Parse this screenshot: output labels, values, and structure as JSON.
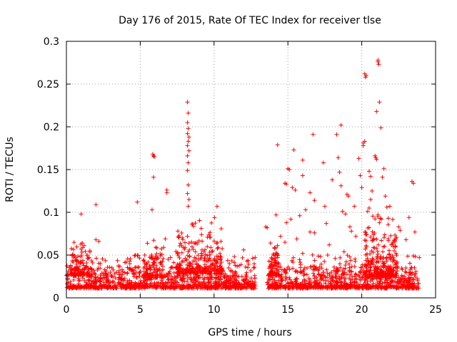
{
  "chart_data": {
    "type": "scatter",
    "title": "Day 176 of 2015, Rate Of TEC Index for receiver tlse",
    "xlabel": "GPS time / hours",
    "ylabel": "ROTI / TECUs",
    "xlim": [
      0,
      25
    ],
    "ylim": [
      0,
      0.3
    ],
    "xticks": [
      0,
      5,
      10,
      15,
      20,
      25
    ],
    "yticks": [
      0,
      0.05,
      0.1,
      0.15,
      0.2,
      0.25,
      0.3
    ],
    "xtick_labels": [
      "0",
      "5",
      "10",
      "15",
      "20",
      "25"
    ],
    "ytick_labels": [
      "0",
      "0.05",
      "0.1",
      "0.15",
      "0.2",
      "0.25",
      "0.3"
    ],
    "grid": true,
    "marker": "+",
    "color": "#ff0000",
    "series": [
      {
        "name": "ROTI",
        "points": [
          [
            1.0,
            0.098
          ],
          [
            2.0,
            0.109
          ],
          [
            4.8,
            0.112
          ],
          [
            5.8,
            0.103
          ],
          [
            5.9,
            0.141
          ],
          [
            5.9,
            0.166
          ],
          [
            5.85,
            0.168
          ],
          [
            5.95,
            0.165
          ],
          [
            6.8,
            0.126
          ],
          [
            6.8,
            0.123
          ],
          [
            8.2,
            0.229
          ],
          [
            8.25,
            0.216
          ],
          [
            8.2,
            0.205
          ],
          [
            8.25,
            0.198
          ],
          [
            8.2,
            0.192
          ],
          [
            8.3,
            0.188
          ],
          [
            8.25,
            0.183
          ],
          [
            8.2,
            0.178
          ],
          [
            8.3,
            0.172
          ],
          [
            8.2,
            0.166
          ],
          [
            8.25,
            0.158
          ],
          [
            8.2,
            0.149
          ],
          [
            8.25,
            0.132
          ],
          [
            8.2,
            0.122
          ],
          [
            8.3,
            0.115
          ],
          [
            8.25,
            0.107
          ],
          [
            8.2,
            0.072
          ],
          [
            8.3,
            0.064
          ],
          [
            10.2,
            0.107
          ],
          [
            6.7,
            0.069
          ],
          [
            2.0,
            0.068
          ],
          [
            2.2,
            0.066
          ],
          [
            1.2,
            0.061
          ],
          [
            12.0,
            0.056
          ],
          [
            13.5,
            0.083
          ],
          [
            13.6,
            0.082
          ],
          [
            14.3,
            0.179
          ],
          [
            14.2,
            0.097
          ],
          [
            14.5,
            0.072
          ],
          [
            15.0,
            0.151
          ],
          [
            15.1,
            0.15
          ],
          [
            15.4,
            0.173
          ],
          [
            14.8,
            0.134
          ],
          [
            14.9,
            0.133
          ],
          [
            15.3,
            0.129
          ],
          [
            15.5,
            0.126
          ],
          [
            16.0,
            0.161
          ],
          [
            16.0,
            0.143
          ],
          [
            16.5,
            0.123
          ],
          [
            16.7,
            0.191
          ],
          [
            16.8,
            0.114
          ],
          [
            16.2,
            0.103
          ],
          [
            15.8,
            0.096
          ],
          [
            15.2,
            0.092
          ],
          [
            14.9,
            0.088
          ],
          [
            14.8,
            0.065
          ],
          [
            17.4,
            0.158
          ],
          [
            17.5,
            0.107
          ],
          [
            17.6,
            0.087
          ],
          [
            18.0,
            0.138
          ],
          [
            18.3,
            0.191
          ],
          [
            18.4,
            0.164
          ],
          [
            18.5,
            0.147
          ],
          [
            18.6,
            0.131
          ],
          [
            18.6,
            0.202
          ],
          [
            18.7,
            0.101
          ],
          [
            19.0,
            0.121
          ],
          [
            19.1,
            0.119
          ],
          [
            19.2,
            0.083
          ],
          [
            19.3,
            0.078
          ],
          [
            18.8,
            0.054
          ],
          [
            19.8,
            0.163
          ],
          [
            19.9,
            0.143
          ],
          [
            20.0,
            0.129
          ],
          [
            20.1,
            0.181
          ],
          [
            20.2,
            0.183
          ],
          [
            20.1,
            0.178
          ],
          [
            20.5,
            0.148
          ],
          [
            20.6,
            0.142
          ],
          [
            20.7,
            0.125
          ],
          [
            20.6,
            0.115
          ],
          [
            20.5,
            0.105
          ],
          [
            20.9,
            0.166
          ],
          [
            21.0,
            0.162
          ],
          [
            20.95,
            0.164
          ],
          [
            21.1,
            0.276
          ],
          [
            21.15,
            0.273
          ],
          [
            21.1,
            0.278
          ],
          [
            21.2,
            0.229
          ],
          [
            21.3,
            0.199
          ],
          [
            21.0,
            0.218
          ],
          [
            20.2,
            0.262
          ],
          [
            20.25,
            0.258
          ],
          [
            20.3,
            0.26
          ],
          [
            21.5,
            0.151
          ],
          [
            21.4,
            0.141
          ],
          [
            21.6,
            0.119
          ],
          [
            21.7,
            0.106
          ],
          [
            21.8,
            0.093
          ],
          [
            21.1,
            0.097
          ],
          [
            21.2,
            0.088
          ],
          [
            22.5,
            0.083
          ],
          [
            22.6,
            0.079
          ],
          [
            23.0,
            0.068
          ],
          [
            23.2,
            0.094
          ],
          [
            23.4,
            0.136
          ],
          [
            23.5,
            0.134
          ],
          [
            23.6,
            0.077
          ],
          [
            23.5,
            0.049
          ],
          [
            20.3,
            0.061
          ],
          [
            20.6,
            0.071
          ],
          [
            21.0,
            0.058
          ],
          [
            22.0,
            0.062
          ],
          [
            22.2,
            0.055
          ],
          [
            16.5,
            0.077
          ],
          [
            16.8,
            0.076
          ],
          [
            17.8,
            0.062
          ],
          [
            18.2,
            0.046
          ],
          [
            19.6,
            0.072
          ],
          [
            15.6,
            0.069
          ],
          [
            16.0,
            0.052
          ],
          [
            14.0,
            0.051
          ],
          [
            14.3,
            0.061
          ],
          [
            18.9,
            0.098
          ],
          [
            19.5,
            0.107
          ],
          [
            20.4,
            0.101
          ],
          [
            21.9,
            0.107
          ],
          [
            22.3,
            0.069
          ],
          [
            23.9,
            0.047
          ]
        ],
        "bands": [
          {
            "from": 0.0,
            "to": 12.8,
            "baseline": 0.015,
            "spread": 0.013,
            "count": 1100
          },
          {
            "from": 0.3,
            "to": 1.6,
            "baseline": 0.03,
            "spread": 0.014,
            "count": 110
          },
          {
            "from": 5.2,
            "to": 6.6,
            "baseline": 0.028,
            "spread": 0.015,
            "count": 110
          },
          {
            "from": 7.4,
            "to": 10.6,
            "baseline": 0.035,
            "spread": 0.022,
            "count": 260
          },
          {
            "from": 13.6,
            "to": 23.9,
            "baseline": 0.015,
            "spread": 0.013,
            "count": 900
          },
          {
            "from": 13.7,
            "to": 14.4,
            "baseline": 0.03,
            "spread": 0.014,
            "count": 70
          },
          {
            "from": 20.2,
            "to": 22.4,
            "baseline": 0.032,
            "spread": 0.024,
            "count": 240
          }
        ]
      }
    ]
  }
}
